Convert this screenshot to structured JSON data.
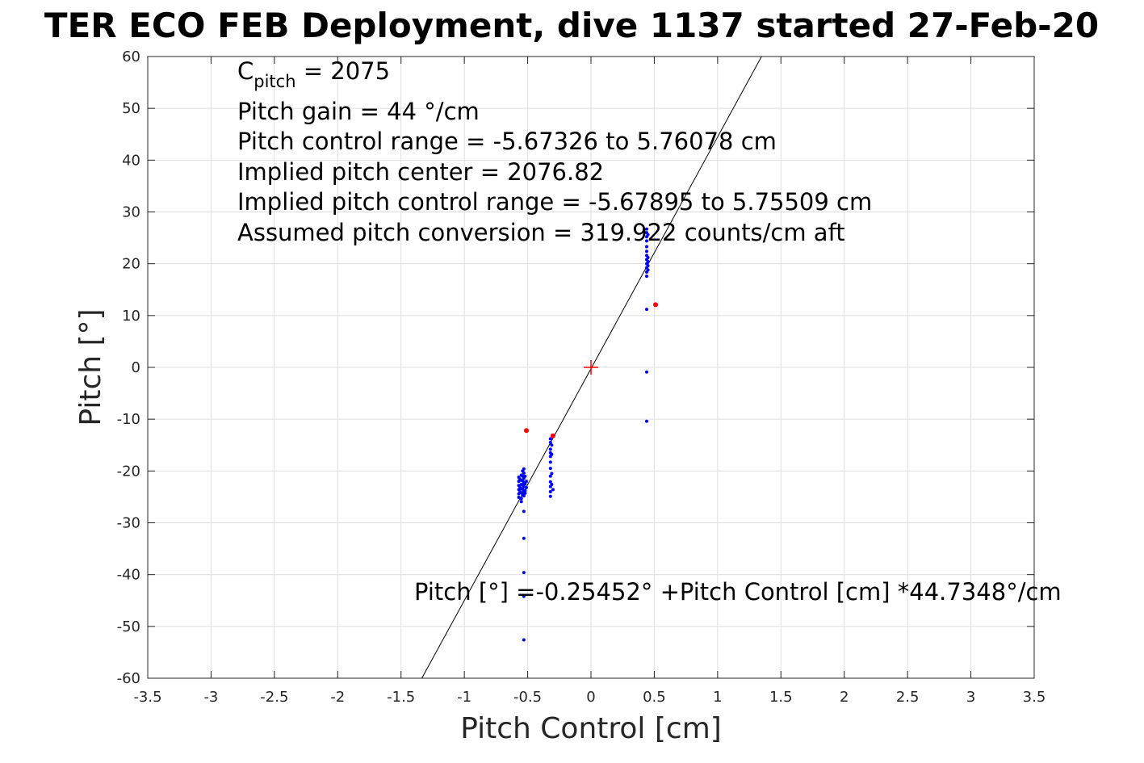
{
  "chart_data": {
    "type": "scatter",
    "title": "TER ECO FEB Deployment, dive 1137 started 27-Feb-20",
    "xlabel": "Pitch Control [cm]",
    "ylabel": "Pitch [°]",
    "xlim": [
      -3.5,
      3.5
    ],
    "ylim": [
      -60,
      60
    ],
    "x_ticks": [
      -3.5,
      -3,
      -2.5,
      -2,
      -1.5,
      -1,
      -0.5,
      0,
      0.5,
      1,
      1.5,
      2,
      2.5,
      3,
      3.5
    ],
    "y_ticks": [
      -60,
      -50,
      -40,
      -30,
      -20,
      -10,
      0,
      10,
      20,
      30,
      40,
      50,
      60
    ],
    "x_tick_labels": [
      "-3.5",
      "-3",
      "-2.5",
      "-2",
      "-1.5",
      "-1",
      "-0.5",
      "0",
      "0.5",
      "1",
      "1.5",
      "2",
      "2.5",
      "3",
      "3.5"
    ],
    "y_tick_labels": [
      "-60",
      "-50",
      "-40",
      "-30",
      "-20",
      "-10",
      "0",
      "10",
      "20",
      "30",
      "40",
      "50",
      "60"
    ],
    "grid": true,
    "annotations": {
      "c_pitch_prefix": "C",
      "c_pitch_sub": "pitch",
      "c_pitch_value": " = 2075",
      "lines": [
        "Pitch gain = 44 °/cm",
        "Pitch control range = -5.67326 to 5.76078 cm",
        "Implied pitch center = 2076.82",
        "Implied pitch control range = -5.67895 to 5.75509 cm",
        "Assumed pitch conversion = 319.922 counts/cm aft"
      ],
      "fit_equation": "Pitch [°] =-0.25452° +Pitch Control [cm] *44.7348°/cm"
    },
    "fit_line": {
      "intercept": -0.25452,
      "slope": 44.7348,
      "color": "#000000"
    },
    "center_marker": {
      "x": 0,
      "y": 0,
      "color": "#ff0000"
    },
    "series": [
      {
        "color": "#0000ff",
        "points": [
          [
            -0.57,
            -21.2
          ],
          [
            -0.57,
            -22.0
          ],
          [
            -0.57,
            -22.8
          ],
          [
            -0.57,
            -23.6
          ],
          [
            -0.57,
            -24.4
          ],
          [
            -0.57,
            -25.1
          ],
          [
            -0.56,
            -21.6
          ],
          [
            -0.56,
            -23.2
          ],
          [
            -0.56,
            -24.0
          ],
          [
            -0.55,
            -20.8
          ],
          [
            -0.55,
            -21.8
          ],
          [
            -0.55,
            -22.6
          ],
          [
            -0.55,
            -23.4
          ],
          [
            -0.55,
            -24.2
          ],
          [
            -0.55,
            -25.3
          ],
          [
            -0.55,
            -25.9
          ],
          [
            -0.54,
            -20.0
          ],
          [
            -0.54,
            -21.0
          ],
          [
            -0.54,
            -21.9
          ],
          [
            -0.54,
            -22.7
          ],
          [
            -0.54,
            -23.5
          ],
          [
            -0.54,
            -24.6
          ],
          [
            -0.53,
            -19.6
          ],
          [
            -0.53,
            -20.4
          ],
          [
            -0.53,
            -21.4
          ],
          [
            -0.53,
            -22.2
          ],
          [
            -0.53,
            -23.0
          ],
          [
            -0.53,
            -23.9
          ],
          [
            -0.53,
            -24.8
          ],
          [
            -0.53,
            -27.8
          ],
          [
            -0.53,
            -33.0
          ],
          [
            -0.53,
            -39.6
          ],
          [
            -0.53,
            -44.2
          ],
          [
            -0.53,
            -52.6
          ],
          [
            -0.52,
            -21.0
          ],
          [
            -0.52,
            -22.5
          ],
          [
            -0.52,
            -23.8
          ],
          [
            -0.52,
            -24.3
          ],
          [
            -0.51,
            -22.0
          ],
          [
            -0.51,
            -23.2
          ],
          [
            -0.32,
            -13.8
          ],
          [
            -0.32,
            -14.5
          ],
          [
            -0.32,
            -15.8
          ],
          [
            -0.32,
            -16.5
          ],
          [
            -0.32,
            -17.2
          ],
          [
            -0.32,
            -18.3
          ],
          [
            -0.32,
            -19.5
          ],
          [
            -0.32,
            -21.0
          ],
          [
            -0.32,
            -22.1
          ],
          [
            -0.32,
            -23.0
          ],
          [
            -0.32,
            -24.0
          ],
          [
            -0.32,
            -24.9
          ],
          [
            -0.31,
            -15.0
          ],
          [
            -0.31,
            -16.8
          ],
          [
            -0.31,
            -20.5
          ],
          [
            -0.31,
            -22.6
          ],
          [
            -0.3,
            -23.6
          ],
          [
            0.44,
            17.6
          ],
          [
            0.44,
            18.4
          ],
          [
            0.44,
            19.2
          ],
          [
            0.44,
            20.0
          ],
          [
            0.44,
            20.8
          ],
          [
            0.44,
            21.6
          ],
          [
            0.44,
            22.4
          ],
          [
            0.44,
            23.3
          ],
          [
            0.44,
            24.4
          ],
          [
            0.44,
            25.2
          ],
          [
            0.44,
            26.0
          ],
          [
            0.44,
            26.7
          ],
          [
            0.45,
            18.8
          ],
          [
            0.45,
            19.6
          ],
          [
            0.45,
            20.4
          ],
          [
            0.45,
            21.2
          ],
          [
            0.45,
            25.6
          ],
          [
            0.44,
            11.2
          ],
          [
            0.44,
            -0.9
          ],
          [
            0.44,
            -10.4
          ]
        ]
      },
      {
        "color": "#ff0000",
        "points": [
          [
            -0.51,
            -12.2
          ],
          [
            -0.3,
            -13.2
          ],
          [
            0.51,
            12.1
          ]
        ]
      }
    ]
  }
}
